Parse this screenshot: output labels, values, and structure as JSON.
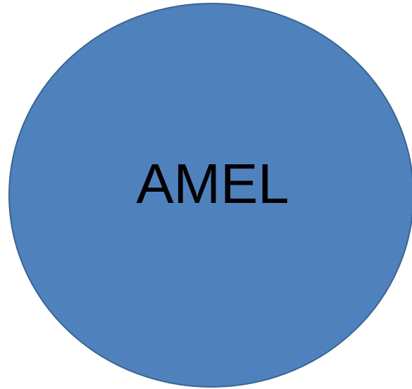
{
  "nodes": [
    {
      "label": "AMEL"
    }
  ]
}
